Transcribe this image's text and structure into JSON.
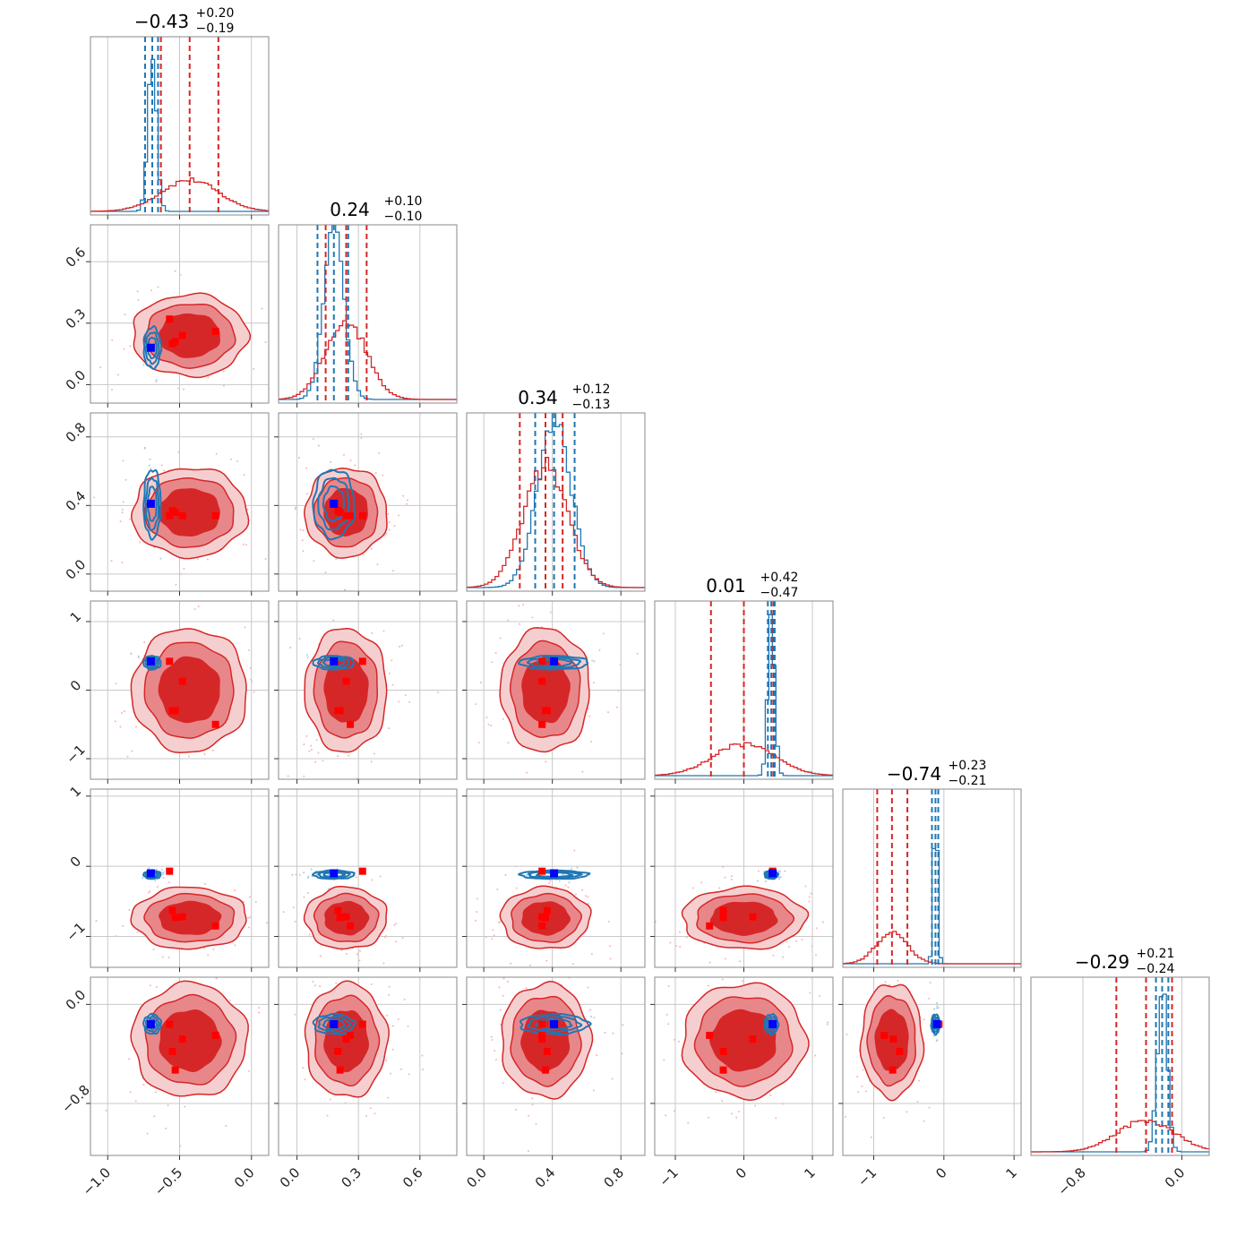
{
  "chart_data": {
    "type": "corner",
    "grid": true,
    "colors": {
      "red": "#d62728",
      "red_mid": "#e8878a",
      "red_light": "#f5cfd0",
      "blue": "#1f77b4",
      "blue_marker": "#0000ff",
      "red_marker": "#ff0000"
    },
    "params": [
      {
        "title_value": "−0.43",
        "title_plus": "+0.20",
        "title_minus": "−0.19",
        "range": [
          -1.12,
          0.12
        ],
        "ticks": [
          -1.0,
          -0.5,
          0.0
        ],
        "tick_labels": [
          "−1.0",
          "−0.5",
          "0.0"
        ]
      },
      {
        "title_value": "0.24",
        "title_plus": "+0.10",
        "title_minus": "−0.10",
        "range": [
          -0.09,
          0.78
        ],
        "ticks": [
          0.0,
          0.3,
          0.6
        ],
        "tick_labels": [
          "0.0",
          "0.3",
          "0.6"
        ]
      },
      {
        "title_value": "0.34",
        "title_plus": "+0.12",
        "title_minus": "−0.13",
        "range": [
          -0.1,
          0.94
        ],
        "ticks": [
          0.0,
          0.4,
          0.8
        ],
        "tick_labels": [
          "0.0",
          "0.4",
          "0.8"
        ]
      },
      {
        "title_value": "0.01",
        "title_plus": "+0.42",
        "title_minus": "−0.47",
        "range": [
          -1.3,
          1.3
        ],
        "ticks": [
          -1,
          0,
          1
        ],
        "tick_labels": [
          "−1",
          "0",
          "1"
        ]
      },
      {
        "title_value": "−0.74",
        "title_plus": "+0.23",
        "title_minus": "−0.21",
        "range": [
          -1.44,
          1.1
        ],
        "ticks": [
          -1,
          0,
          1
        ],
        "tick_labels": [
          "−1",
          "0",
          "1"
        ]
      },
      {
        "title_value": "−0.29",
        "title_plus": "+0.21",
        "title_minus": "−0.24",
        "range": [
          -1.22,
          0.22
        ],
        "ticks": [
          -0.8,
          0.0
        ],
        "tick_labels": [
          "−0.8",
          "0.0"
        ]
      }
    ],
    "red_distribution": {
      "mean": [
        -0.43,
        0.24,
        0.36,
        0.0,
        -0.74,
        -0.29
      ],
      "sd": [
        0.2,
        0.1,
        0.13,
        0.45,
        0.22,
        0.23
      ],
      "quantiles": [
        [
          -0.63,
          -0.23
        ],
        [
          0.14,
          0.34
        ],
        [
          0.21,
          0.46
        ],
        [
          -0.48,
          0.43
        ],
        [
          -0.95,
          -0.52
        ],
        [
          -0.53,
          -0.08
        ]
      ]
    },
    "blue_distribution": {
      "mean": [
        -0.69,
        0.18,
        0.41,
        0.4,
        -0.12,
        -0.16
      ],
      "sd": [
        0.03,
        0.05,
        0.1,
        0.05,
        0.03,
        0.04
      ],
      "quantiles": [
        [
          -0.74,
          -0.65
        ],
        [
          0.1,
          0.25
        ],
        [
          0.3,
          0.53
        ],
        [
          0.35,
          0.45
        ],
        [
          -0.17,
          -0.08
        ],
        [
          -0.21,
          -0.11
        ]
      ]
    },
    "blue_marker": [
      -0.7,
      0.18,
      0.41,
      0.42,
      -0.1,
      -0.16
    ],
    "red_markers": [
      [
        -0.57,
        0.32,
        0.34,
        0.42,
        -0.07,
        -0.16
      ],
      [
        -0.48,
        0.24,
        0.34,
        0.13,
        -0.72,
        -0.28
      ],
      [
        -0.25,
        0.26,
        0.34,
        -0.5,
        -0.85,
        -0.25
      ],
      [
        -0.55,
        0.2,
        0.37,
        -0.3,
        -0.63,
        -0.38
      ],
      [
        -0.53,
        0.21,
        0.36,
        -0.3,
        -0.73,
        -0.53
      ]
    ]
  }
}
